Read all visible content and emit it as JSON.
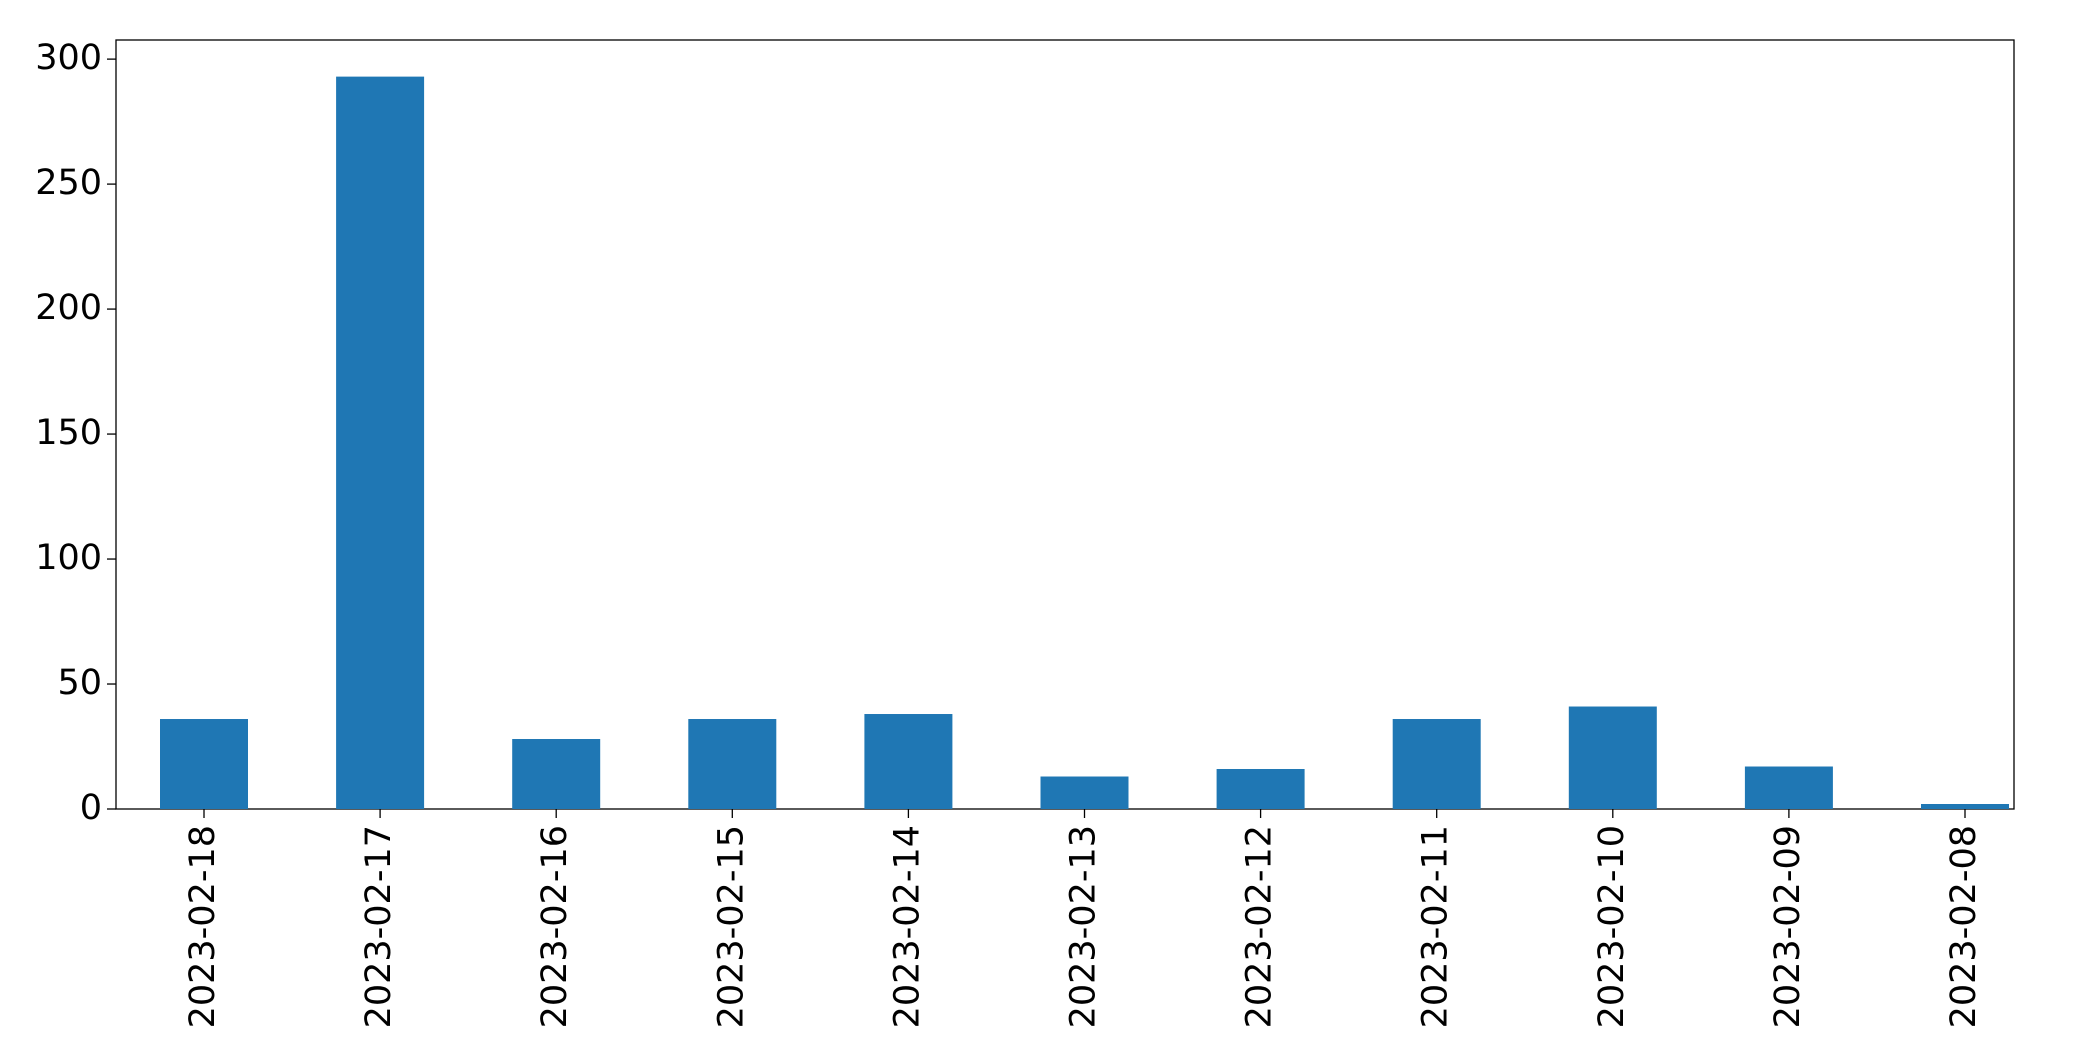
{
  "chart_data": {
    "type": "bar",
    "categories": [
      "2023-02-18",
      "2023-02-17",
      "2023-02-16",
      "2023-02-15",
      "2023-02-14",
      "2023-02-13",
      "2023-02-12",
      "2023-02-11",
      "2023-02-10",
      "2023-02-09",
      "2023-02-08"
    ],
    "values": [
      36,
      293,
      28,
      36,
      38,
      13,
      16,
      36,
      41,
      17,
      2
    ],
    "color": "#1f77b4",
    "ylim": [
      0,
      307.65
    ],
    "yticks": [
      0,
      50,
      100,
      150,
      200,
      250,
      300
    ],
    "grid": false
  }
}
